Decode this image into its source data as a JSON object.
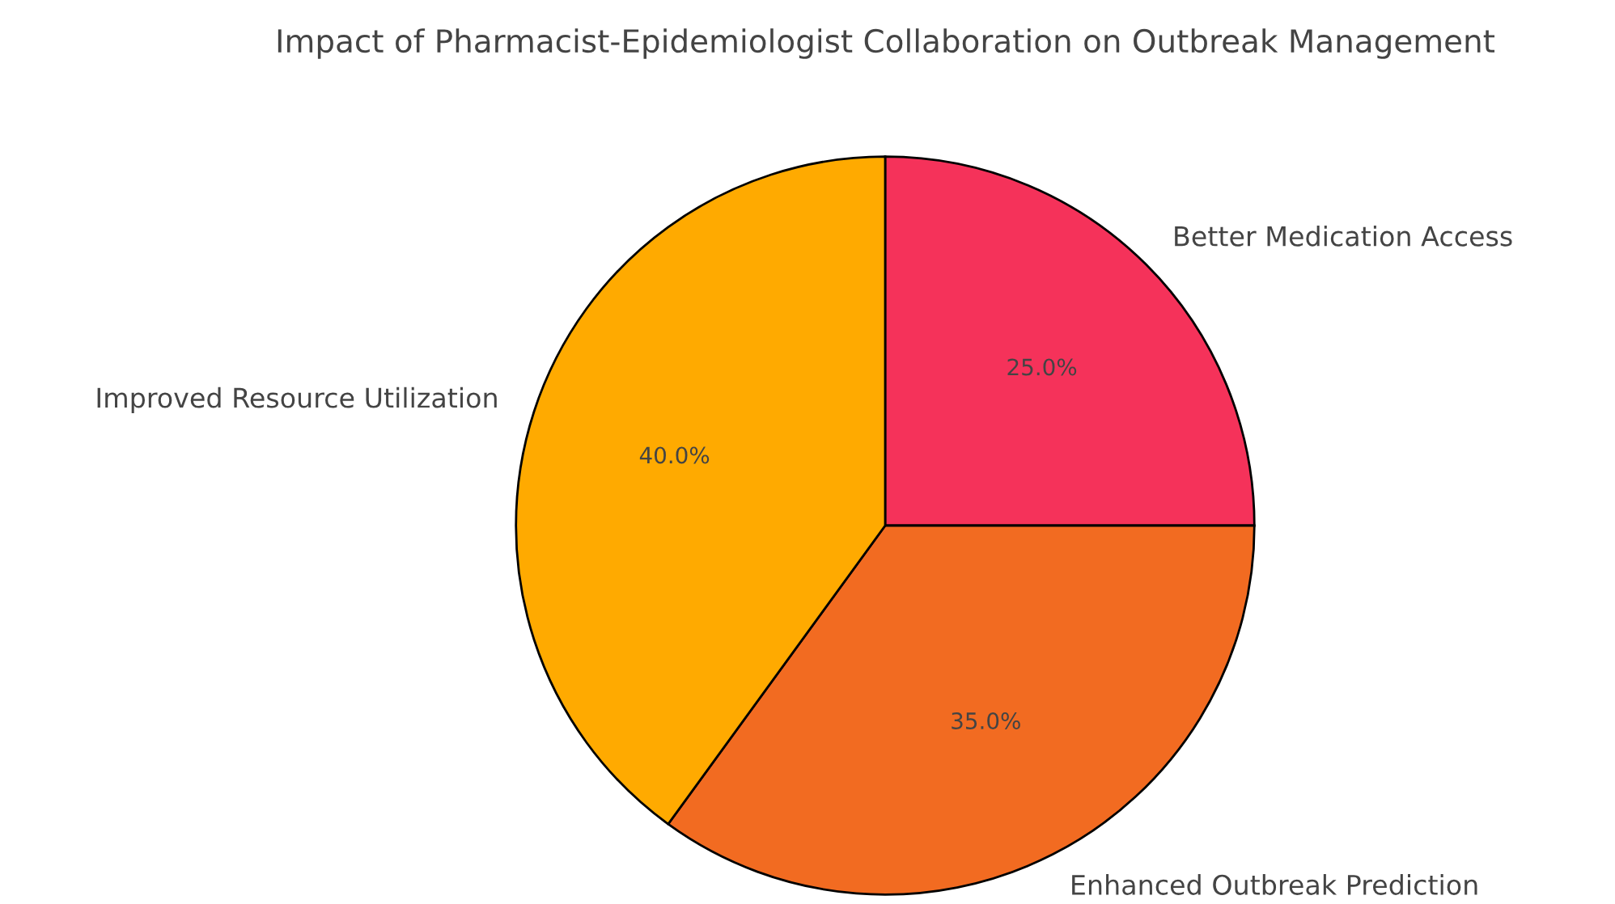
{
  "chart_data": {
    "type": "pie",
    "title": "Impact of Pharmacist-Epidemiologist Collaboration on Outbreak Management",
    "categories": [
      "Better Medication Access",
      "Enhanced Outbreak Prediction",
      "Improved Resource Utilization"
    ],
    "values": [
      25,
      35,
      40
    ],
    "colors": [
      "#f5325a",
      "#f26b21",
      "#ffaa00"
    ],
    "value_labels": [
      "25.0%",
      "35.0%",
      "40.0%"
    ]
  }
}
